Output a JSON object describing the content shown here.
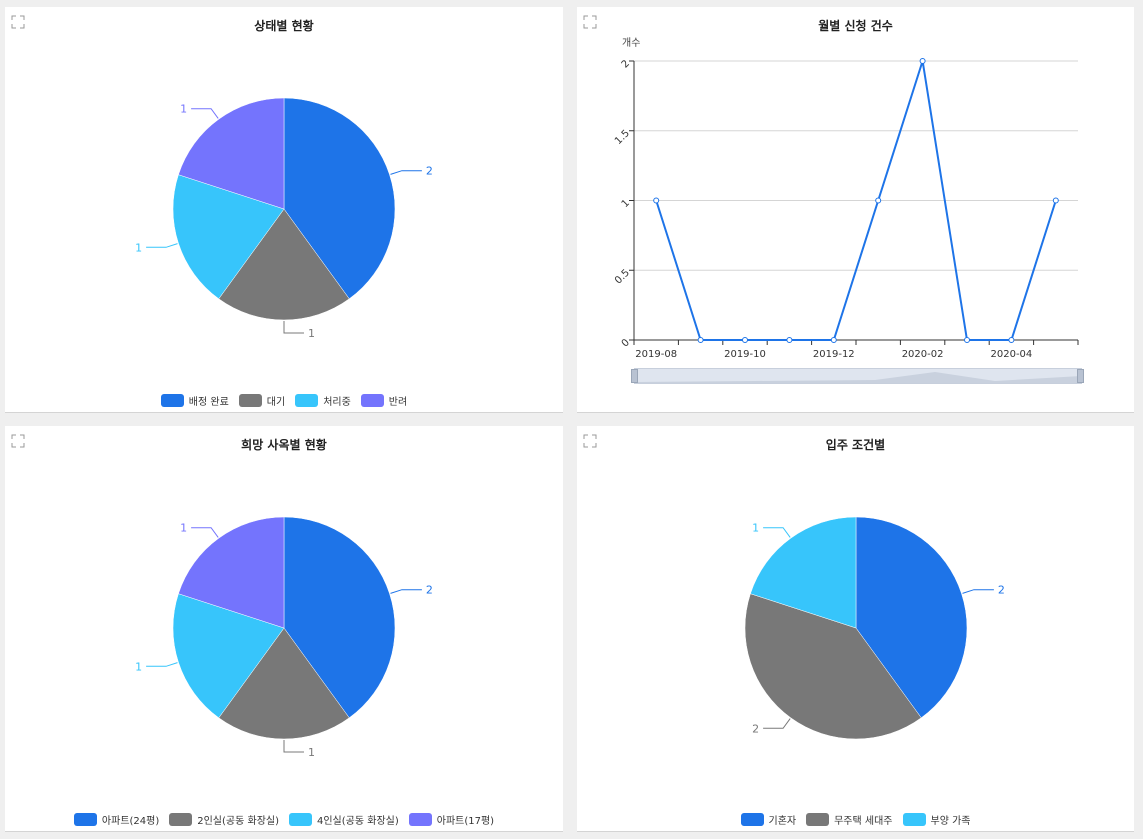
{
  "panels": [
    {
      "title": "상태별 현황"
    },
    {
      "title": "월별 신청 건수"
    },
    {
      "title": "희망 사옥별 현황"
    },
    {
      "title": "입주 조건별"
    }
  ],
  "chart_data": [
    {
      "type": "pie",
      "title": "상태별 현황",
      "labels": [
        "배정 완료",
        "대기",
        "처리중",
        "반려"
      ],
      "values": [
        2,
        1,
        1,
        1
      ],
      "colors": [
        "#1e74e8",
        "#787878",
        "#37c5fb",
        "#7474fd"
      ],
      "data_labels": true,
      "legend": "bottom"
    },
    {
      "type": "line",
      "title": "월별 신청 건수",
      "ylabel": "개수",
      "x": [
        "2019-08",
        "2019-09",
        "2019-10",
        "2019-11",
        "2019-12",
        "2020-01",
        "2020-02",
        "2020-03",
        "2020-04",
        "2020-05"
      ],
      "x_tick_labels": [
        "2019-08",
        "2019-10",
        "2019-12",
        "2020-02",
        "2020-04"
      ],
      "series": [
        {
          "values": [
            1,
            0,
            0,
            0,
            0,
            1,
            2,
            0,
            0,
            1
          ],
          "color": "#1e74e8"
        }
      ],
      "ylim": [
        0,
        2
      ],
      "y_ticks": [
        "0",
        "0.5",
        "1",
        "1.5",
        "2"
      ],
      "grid": true,
      "data_zoom": true
    },
    {
      "type": "pie",
      "title": "희망 사옥별 현황",
      "labels": [
        "아파트(24평)",
        "2인실(공동 화장실)",
        "4인실(공동 화장실)",
        "아파트(17평)"
      ],
      "values": [
        2,
        1,
        1,
        1
      ],
      "colors": [
        "#1e74e8",
        "#787878",
        "#37c5fb",
        "#7474fd"
      ],
      "data_labels": true,
      "legend": "bottom"
    },
    {
      "type": "pie",
      "title": "입주 조건별",
      "labels": [
        "기혼자",
        "무주택 세대주",
        "부양 가족"
      ],
      "values": [
        2,
        2,
        1
      ],
      "colors": [
        "#1e74e8",
        "#787878",
        "#37c5fb"
      ],
      "data_labels": true,
      "legend": "bottom"
    }
  ]
}
